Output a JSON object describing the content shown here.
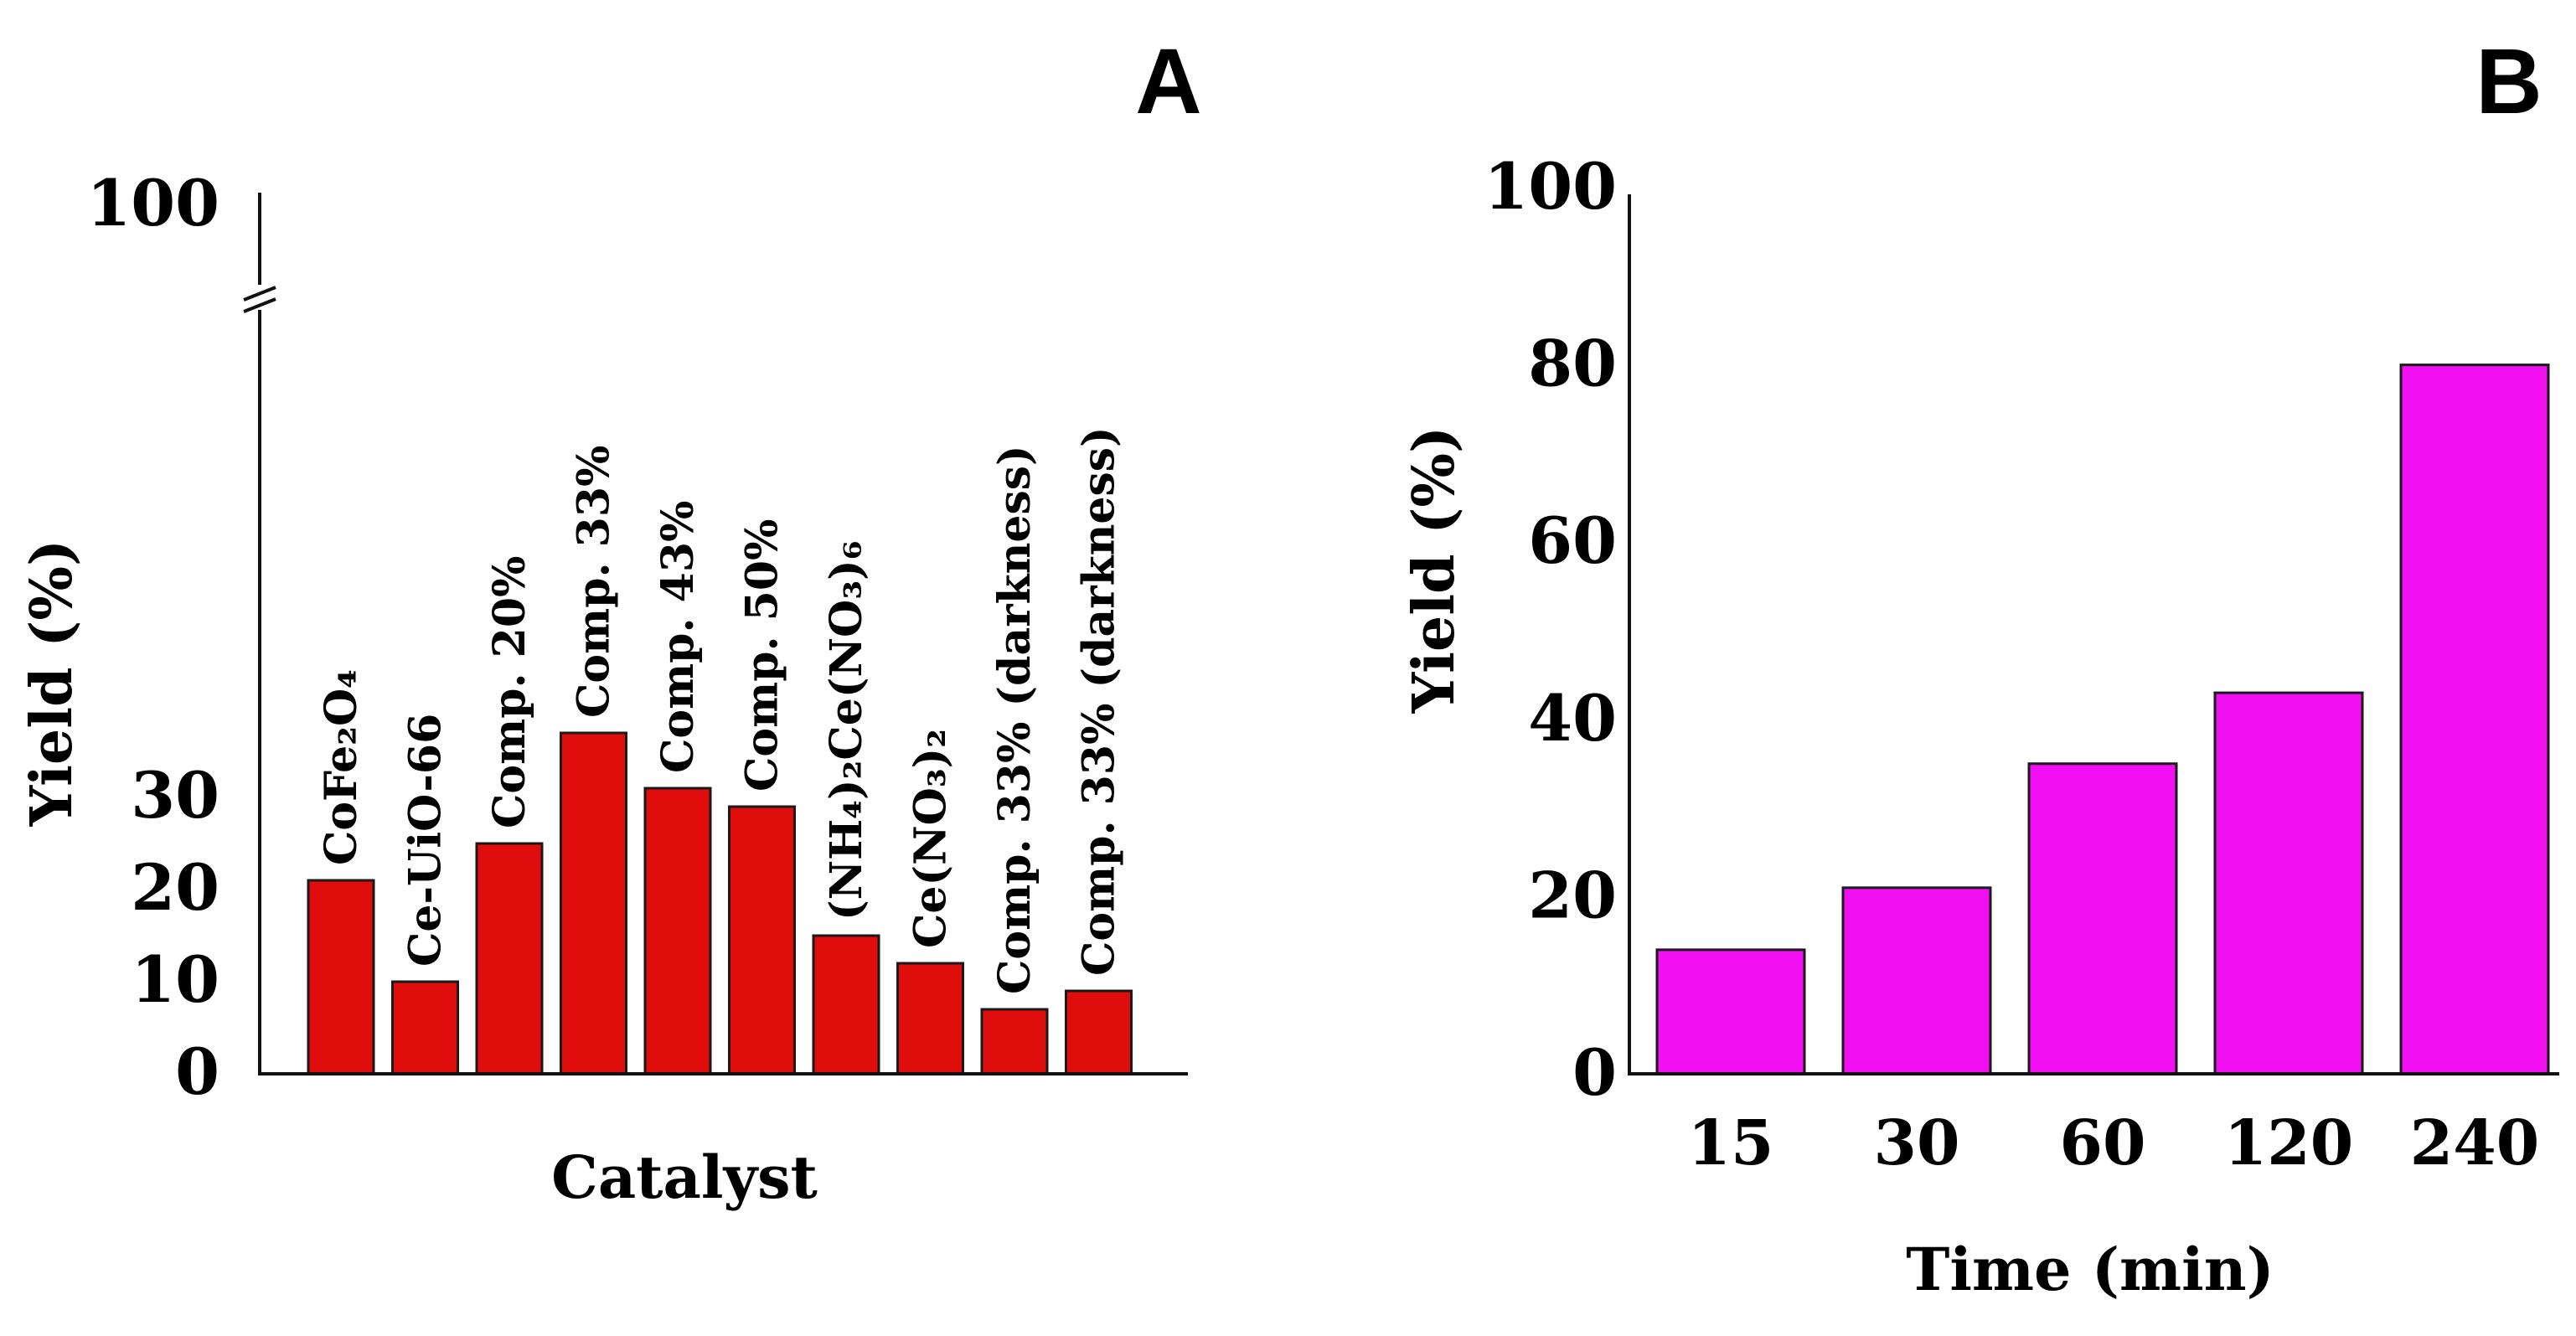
{
  "chart_data": [
    {
      "panel": "A",
      "type": "bar",
      "xlabel": "Catalyst",
      "ylabel": "Yield (%)",
      "axis_break": true,
      "yticks": [
        "0",
        "10",
        "20",
        "30",
        "100"
      ],
      "ylim": [
        0,
        100
      ],
      "bar_color": "#e00d0d",
      "categories": [
        "CoFe₂O₄",
        "Ce-UiO-66",
        "Comp. 20%",
        "Comp. 33%",
        "Comp. 43%",
        "Comp. 50%",
        "(NH₄)₂Ce(NO₃)₆",
        "Ce(NO₃)₂",
        "Comp. 33% (darkness)",
        "Comp. 33% (darkness)"
      ],
      "values": [
        21,
        10,
        25,
        37,
        31,
        29,
        15,
        12,
        7,
        9
      ]
    },
    {
      "panel": "B",
      "type": "bar",
      "xlabel": "Time (min)",
      "ylabel": "Yield (%)",
      "yticks": [
        "0",
        "20",
        "40",
        "60",
        "80",
        "100"
      ],
      "ylim": [
        0,
        100
      ],
      "bar_color": "#f20ff2",
      "categories": [
        "15",
        "30",
        "60",
        "120",
        "240"
      ],
      "values": [
        14,
        21,
        35,
        43,
        80
      ]
    }
  ]
}
